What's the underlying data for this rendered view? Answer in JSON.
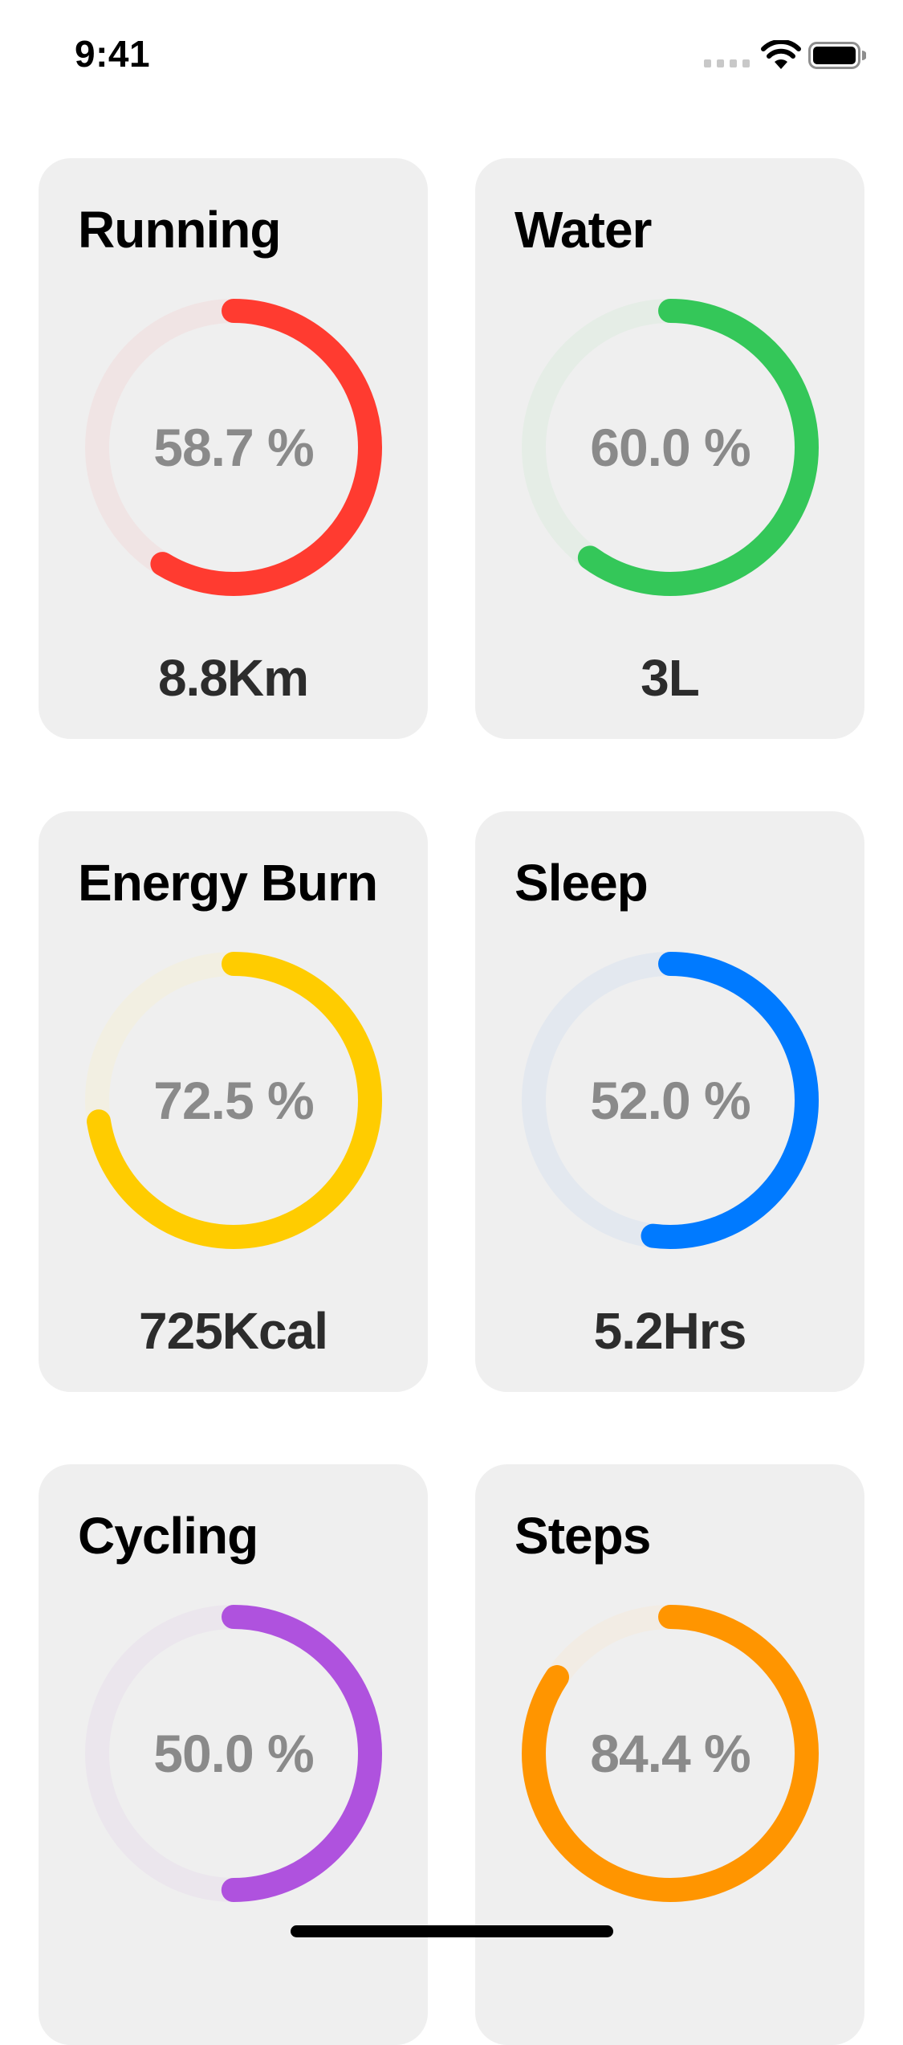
{
  "status_bar": {
    "time": "9:41"
  },
  "cards": [
    {
      "title": "Running",
      "percent_label": "58.7 %",
      "progress": 0.587,
      "value": "8.8Km",
      "color": "#ff3b30",
      "track_color": "#f0e4e4"
    },
    {
      "title": "Water",
      "percent_label": "60.0 %",
      "progress": 0.6,
      "value": "3L",
      "color": "#34c759",
      "track_color": "#e5ede6"
    },
    {
      "title": "Energy Burn",
      "percent_label": "72.5 %",
      "progress": 0.725,
      "value": "725Kcal",
      "color": "#ffcc00",
      "track_color": "#f2efe2"
    },
    {
      "title": "Sleep",
      "percent_label": "52.0 %",
      "progress": 0.52,
      "value": "5.2Hrs",
      "color": "#007aff",
      "track_color": "#e3e8ef"
    },
    {
      "title": "Cycling",
      "percent_label": "50.0 %",
      "progress": 0.5,
      "value": "",
      "color": "#af52de",
      "track_color": "#ebe6ed"
    },
    {
      "title": "Steps",
      "percent_label": "84.4 %",
      "progress": 0.844,
      "value": "",
      "color": "#ff9500",
      "track_color": "#f2ece4"
    }
  ]
}
